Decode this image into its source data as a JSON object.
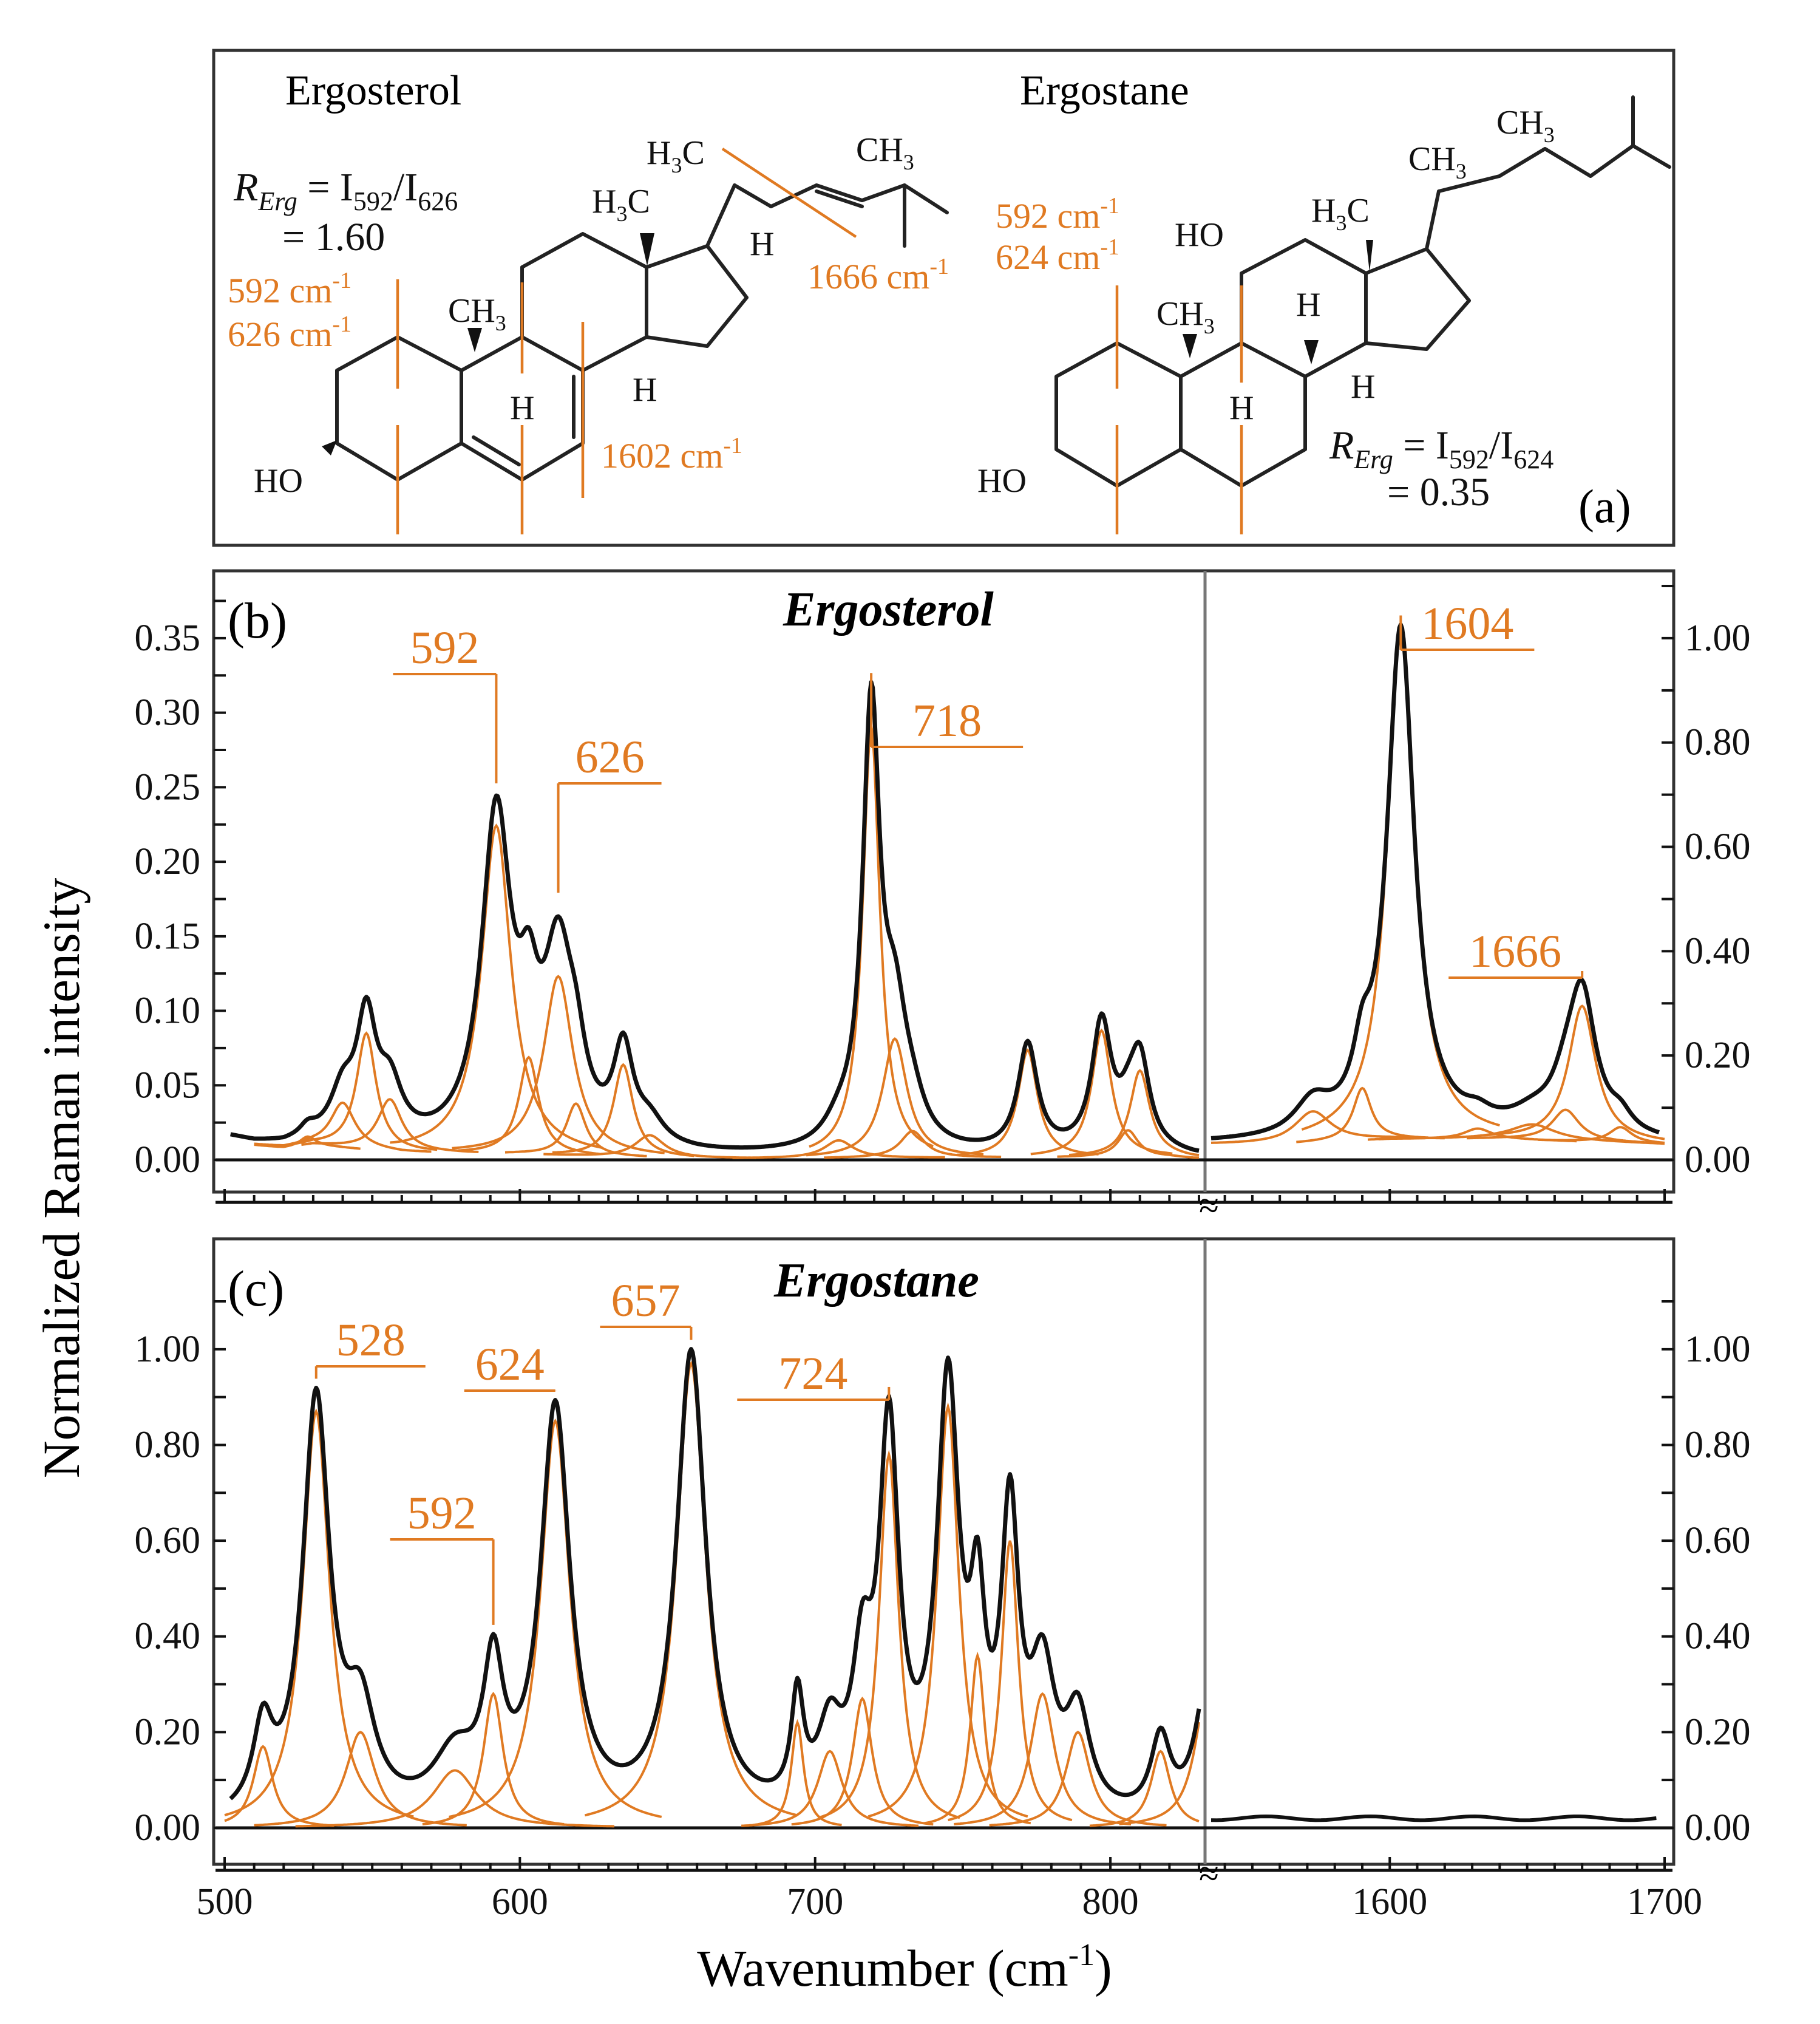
{
  "panel_a": {
    "label": "(a)",
    "ergosterol": {
      "name": "Ergosterol",
      "ratio_symbol": "R",
      "ratio_sub": "Erg",
      "ratio_eq": " = I",
      "ratio_i1": "592",
      "ratio_slash": "/I",
      "ratio_i2": "626",
      "ratio_value": "= 1.60",
      "band1": "592 cm",
      "band2": "626 cm",
      "band3": "1602 cm",
      "band4": "1666 cm",
      "sup": "-1",
      "atoms": {
        "ho": "HO",
        "ch3": "CH",
        "h3c": "H",
        "h": "H",
        "three": "3",
        "c": "C"
      }
    },
    "ergostane": {
      "name": "Ergostane",
      "ratio_symbol": "R",
      "ratio_sub": "Erg",
      "ratio_eq": " = I",
      "ratio_i1": "592",
      "ratio_slash": "/I",
      "ratio_i2": "624",
      "ratio_value": "= 0.35",
      "band1": "592 cm",
      "band2": "624 cm",
      "sup": "-1"
    }
  },
  "panel_b": {
    "label": "(b)",
    "title": "Ergosterol"
  },
  "panel_c": {
    "label": "(c)",
    "title": "Ergostane"
  },
  "axes": {
    "ylabel": "Normalized Raman intensity",
    "xlabel_main": "Wavenumber (cm",
    "xlabel_sup": "-1",
    "xlabel_close": ")"
  },
  "colors": {
    "fit_components": "#e07a22",
    "spectrum": "#111111"
  },
  "chart_data": [
    {
      "type": "line",
      "panel": "b",
      "title": "Ergosterol",
      "xlabel": "Wavenumber (cm-1)",
      "ylabel": "Normalized Raman intensity",
      "segments": [
        {
          "xlim": [
            500,
            830
          ],
          "ylim": [
            0,
            0.385
          ],
          "yticks": [
            "0.00",
            "0.05",
            "0.10",
            "0.15",
            "0.20",
            "0.25",
            "0.30",
            "0.35"
          ],
          "yticks_values": [
            0,
            0.05,
            0.1,
            0.15,
            0.2,
            0.25,
            0.3,
            0.35
          ],
          "y_axis": "left"
        },
        {
          "xlim": [
            1535,
            1700
          ],
          "ylim": [
            0,
            1.1
          ],
          "yticks": [
            "0.00",
            "0.20",
            "0.40",
            "0.60",
            "0.80",
            "1.00"
          ],
          "yticks_values": [
            0,
            0.2,
            0.4,
            0.6,
            0.8,
            1.0
          ],
          "y_axis": "right"
        }
      ],
      "baseline": [
        [
          500,
          0.015
        ],
        [
          510,
          0.01
        ],
        [
          520,
          0.008
        ],
        [
          530,
          0.01
        ],
        [
          560,
          0.005
        ],
        [
          600,
          0.004
        ],
        [
          630,
          0.002
        ],
        [
          660,
          0.001
        ],
        [
          700,
          0.001
        ],
        [
          820,
          0.002
        ],
        [
          828,
          0.001
        ]
      ],
      "peaks_low": [
        {
          "center": 528,
          "height": 0.006,
          "width": 3
        },
        {
          "center": 540,
          "height": 0.03,
          "width": 5
        },
        {
          "center": 548,
          "height": 0.078,
          "width": 4
        },
        {
          "center": 556,
          "height": 0.035,
          "width": 5
        },
        {
          "center": 592,
          "height": 0.22,
          "width": 6
        },
        {
          "center": 603,
          "height": 0.065,
          "width": 4
        },
        {
          "center": 613,
          "height": 0.12,
          "width": 6
        },
        {
          "center": 619,
          "height": 0.035,
          "width": 4
        },
        {
          "center": 635,
          "height": 0.062,
          "width": 4
        },
        {
          "center": 644,
          "height": 0.015,
          "width": 6
        },
        {
          "center": 708,
          "height": 0.012,
          "width": 6
        },
        {
          "center": 719,
          "height": 0.29,
          "width": 3.5
        },
        {
          "center": 727,
          "height": 0.08,
          "width": 5
        },
        {
          "center": 733,
          "height": 0.018,
          "width": 5
        },
        {
          "center": 772,
          "height": 0.072,
          "width": 4
        },
        {
          "center": 797,
          "height": 0.085,
          "width": 4
        },
        {
          "center": 806,
          "height": 0.018,
          "width": 4
        },
        {
          "center": 810,
          "height": 0.058,
          "width": 4
        }
      ],
      "baseline_high": [
        [
          1535,
          0.03
        ],
        [
          1560,
          0.03
        ],
        [
          1600,
          0.04
        ],
        [
          1640,
          0.04
        ],
        [
          1700,
          0.03
        ]
      ],
      "peaks_high": [
        {
          "center": 1572,
          "height": 0.06,
          "width": 8
        },
        {
          "center": 1590,
          "height": 0.1,
          "width": 4
        },
        {
          "center": 1604,
          "height": 0.97,
          "width": 6
        },
        {
          "center": 1632,
          "height": 0.02,
          "width": 6
        },
        {
          "center": 1652,
          "height": 0.03,
          "width": 10
        },
        {
          "center": 1664,
          "height": 0.06,
          "width": 6
        },
        {
          "center": 1670,
          "height": 0.26,
          "width": 6
        },
        {
          "center": 1684,
          "height": 0.03,
          "width": 5
        }
      ],
      "annotations": [
        {
          "text": "592",
          "x": 592
        },
        {
          "text": "626",
          "x": 613
        },
        {
          "text": "718",
          "x": 719
        },
        {
          "text": "1604",
          "x": 1604
        },
        {
          "text": "1666",
          "x": 1670
        }
      ]
    },
    {
      "type": "line",
      "panel": "c",
      "title": "Ergostane",
      "xlabel": "Wavenumber (cm-1)",
      "ylabel": "Normalized Raman intensity",
      "segments": [
        {
          "xlim": [
            500,
            830
          ],
          "ylim": [
            0,
            1.18
          ],
          "yticks": [
            "0.00",
            "0.20",
            "0.40",
            "0.60",
            "0.80",
            "1.00"
          ],
          "yticks_values": [
            0,
            0.2,
            0.4,
            0.6,
            0.8,
            1.0
          ],
          "y_axis": "left"
        },
        {
          "xlim": [
            1535,
            1700
          ],
          "ylim": [
            0,
            1.18
          ],
          "yticks": [
            "0.00",
            "0.20",
            "0.40",
            "0.60",
            "0.80",
            "1.00"
          ],
          "yticks_values": [
            0,
            0.2,
            0.4,
            0.6,
            0.8,
            1.0
          ],
          "y_axis": "right",
          "flat_level": 0.02
        }
      ],
      "baseline": [
        [
          500,
          0.0
        ],
        [
          830,
          0.0
        ]
      ],
      "peaks_low": [
        {
          "center": 513,
          "height": 0.17,
          "width": 4
        },
        {
          "center": 531,
          "height": 0.87,
          "width": 5.5
        },
        {
          "center": 546,
          "height": 0.2,
          "width": 6
        },
        {
          "center": 578,
          "height": 0.12,
          "width": 9
        },
        {
          "center": 591,
          "height": 0.28,
          "width": 4
        },
        {
          "center": 612,
          "height": 0.85,
          "width": 6
        },
        {
          "center": 658,
          "height": 0.97,
          "width": 6
        },
        {
          "center": 694,
          "height": 0.22,
          "width": 2.5
        },
        {
          "center": 705,
          "height": 0.16,
          "width": 5
        },
        {
          "center": 716,
          "height": 0.27,
          "width": 4
        },
        {
          "center": 725,
          "height": 0.78,
          "width": 4
        },
        {
          "center": 745,
          "height": 0.88,
          "width": 4.5
        },
        {
          "center": 755,
          "height": 0.36,
          "width": 3
        },
        {
          "center": 766,
          "height": 0.6,
          "width": 3.5
        },
        {
          "center": 777,
          "height": 0.28,
          "width": 5
        },
        {
          "center": 789,
          "height": 0.2,
          "width": 5
        },
        {
          "center": 817,
          "height": 0.16,
          "width": 4
        },
        {
          "center": 833,
          "height": 0.3,
          "width": 5
        }
      ],
      "annotations": [
        {
          "text": "528",
          "x": 531
        },
        {
          "text": "592",
          "x": 591
        },
        {
          "text": "624",
          "x": 612
        },
        {
          "text": "657",
          "x": 658
        },
        {
          "text": "724",
          "x": 725
        }
      ],
      "xticks": [
        "500",
        "600",
        "700",
        "800",
        "1600",
        "1700"
      ],
      "xticks_values": [
        500,
        600,
        700,
        800,
        1600,
        1700
      ]
    }
  ]
}
